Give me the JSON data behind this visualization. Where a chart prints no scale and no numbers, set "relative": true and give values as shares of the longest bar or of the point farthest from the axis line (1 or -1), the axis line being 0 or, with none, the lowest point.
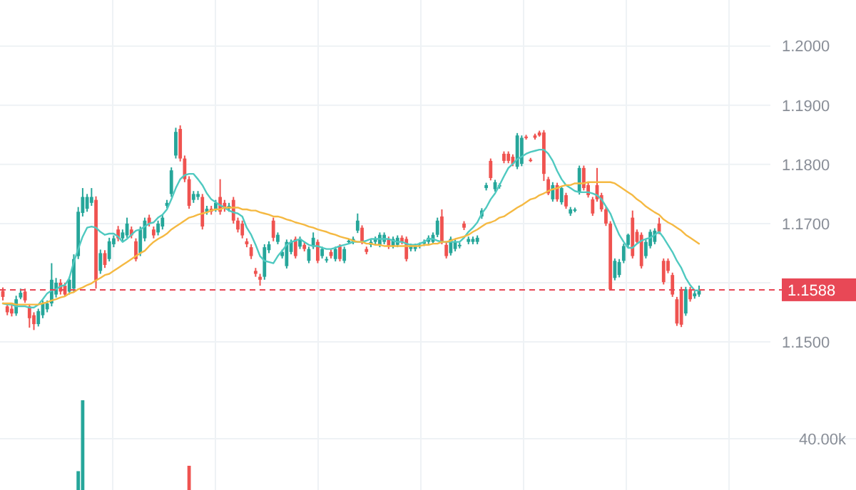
{
  "chart_data": [
    {
      "type": "candlestick",
      "categories": [
        null,
        null,
        null,
        null,
        null,
        null,
        null,
        null,
        null,
        null,
        null,
        null,
        null,
        null,
        null,
        null,
        null,
        null,
        null,
        null,
        null,
        null,
        null,
        null,
        null,
        null,
        null,
        null,
        null,
        null,
        null,
        null,
        null,
        null,
        null,
        null,
        null,
        null,
        null,
        null,
        null,
        null,
        null,
        null,
        null,
        null,
        null,
        null,
        null,
        null,
        null,
        null,
        null,
        null,
        null,
        null,
        null,
        null,
        null,
        null,
        null,
        null,
        null,
        null,
        null,
        null,
        null,
        null,
        null,
        null,
        null,
        null,
        null,
        null,
        null,
        null,
        null,
        null,
        null,
        null,
        null,
        null,
        null,
        null,
        null,
        null,
        null,
        null,
        null,
        null,
        null,
        null,
        null,
        null,
        null,
        null,
        null,
        null,
        null,
        null,
        null,
        null,
        null,
        null,
        null,
        null,
        null,
        null,
        null,
        null,
        null,
        null,
        null,
        null,
        null,
        null,
        null,
        null,
        null,
        null,
        null,
        null,
        null,
        null,
        null,
        null,
        null,
        null,
        null,
        null,
        null,
        null,
        null,
        null,
        null,
        null,
        null,
        null,
        null,
        null,
        null,
        null,
        null,
        null,
        null,
        null,
        null,
        null,
        null,
        null,
        null,
        null,
        null,
        null,
        null,
        null,
        null,
        null
      ],
      "ohlc": [
        [
          1.1586,
          1.1592,
          1.157,
          1.1576
        ],
        [
          1.156,
          1.1565,
          1.1545,
          1.155
        ],
        [
          1.1556,
          1.1562,
          1.1543,
          1.1548
        ],
        [
          1.1548,
          1.1578,
          1.1544,
          1.1572
        ],
        [
          1.1575,
          1.159,
          1.1572,
          1.1583
        ],
        [
          1.1585,
          1.159,
          1.1566,
          1.157
        ],
        [
          1.156,
          1.1564,
          1.1524,
          1.154
        ],
        [
          1.1545,
          1.155,
          1.152,
          1.153
        ],
        [
          1.153,
          1.1556,
          1.1526,
          1.1552
        ],
        [
          1.1545,
          1.157,
          1.154,
          1.1565
        ],
        [
          1.1555,
          1.157,
          1.155,
          1.1565
        ],
        [
          1.1565,
          1.1633,
          1.156,
          1.1605
        ],
        [
          1.158,
          1.1608,
          1.1575,
          1.16
        ],
        [
          1.16,
          1.1606,
          1.158,
          1.1585
        ],
        [
          1.1595,
          1.16,
          1.1576,
          1.158
        ],
        [
          1.1585,
          1.161,
          1.158,
          1.1605
        ],
        [
          1.159,
          1.1648,
          1.1585,
          1.164
        ],
        [
          1.1645,
          1.1728,
          1.164,
          1.172
        ],
        [
          1.1718,
          1.176,
          1.1712,
          1.1745
        ],
        [
          1.1725,
          1.175,
          1.172,
          1.1745
        ],
        [
          1.1735,
          1.176,
          1.173,
          1.1745
        ],
        [
          1.174,
          1.1746,
          1.159,
          1.1604
        ],
        [
          1.162,
          1.1656,
          1.1615,
          1.165
        ],
        [
          1.165,
          1.1655,
          1.1625,
          1.163
        ],
        [
          1.164,
          1.1676,
          1.1636,
          1.167
        ],
        [
          1.1665,
          1.168,
          1.166,
          1.1675
        ],
        [
          1.169,
          1.1696,
          1.167,
          1.1675
        ],
        [
          1.1675,
          1.169,
          1.167,
          1.1685
        ],
        [
          1.168,
          1.171,
          1.1676,
          1.17
        ],
        [
          1.169,
          1.1695,
          1.1675,
          1.168
        ],
        [
          1.167,
          1.1675,
          1.1636,
          1.164
        ],
        [
          1.165,
          1.1695,
          1.1645,
          1.169
        ],
        [
          1.1675,
          1.171,
          1.167,
          1.1705
        ],
        [
          1.171,
          1.1715,
          1.1695,
          1.17
        ],
        [
          1.169,
          1.1695,
          1.1675,
          1.168
        ],
        [
          1.1685,
          1.1705,
          1.168,
          1.17
        ],
        [
          1.1695,
          1.1715,
          1.169,
          1.171
        ],
        [
          1.173,
          1.174,
          1.1726,
          1.1735
        ],
        [
          1.175,
          1.1795,
          1.1745,
          1.179
        ],
        [
          1.1815,
          1.1862,
          1.181,
          1.1855
        ],
        [
          1.186,
          1.1866,
          1.1805,
          1.181
        ],
        [
          1.181,
          1.1815,
          1.177,
          1.1775
        ],
        [
          1.1775,
          1.178,
          1.1725,
          1.173
        ],
        [
          1.174,
          1.1755,
          1.1735,
          1.175
        ],
        [
          1.1745,
          1.1755,
          1.174,
          1.175
        ],
        [
          1.1745,
          1.175,
          1.169,
          1.1695
        ],
        [
          1.172,
          1.173,
          1.1715,
          1.1725
        ],
        [
          1.1725,
          1.173,
          1.1715,
          1.172
        ],
        [
          1.1725,
          1.174,
          1.172,
          1.1735
        ],
        [
          1.1745,
          1.1775,
          1.1715,
          1.172
        ],
        [
          1.1735,
          1.174,
          1.172,
          1.1725
        ],
        [
          1.1725,
          1.1735,
          1.172,
          1.173
        ],
        [
          1.174,
          1.1745,
          1.17,
          1.1705
        ],
        [
          1.1705,
          1.171,
          1.1685,
          1.169
        ],
        [
          1.17,
          1.1705,
          1.1675,
          1.168
        ],
        [
          1.167,
          1.1675,
          1.166,
          1.1665
        ],
        [
          1.166,
          1.1665,
          1.164,
          1.1645
        ],
        [
          1.162,
          1.1625,
          1.161,
          1.1615
        ],
        [
          1.161,
          1.1615,
          1.1595,
          1.1605
        ],
        [
          1.161,
          1.1665,
          1.1605,
          1.166
        ],
        [
          1.1655,
          1.167,
          1.165,
          1.1665
        ],
        [
          1.1705,
          1.171,
          1.167,
          1.1676
        ],
        [
          1.1669,
          1.1685,
          1.1665,
          1.1681
        ],
        [
          1.1645,
          1.1656,
          1.1641,
          1.1652
        ],
        [
          1.1628,
          1.1673,
          1.1624,
          1.1669
        ],
        [
          1.1652,
          1.1673,
          1.1648,
          1.1669
        ],
        [
          1.1674,
          1.1678,
          1.1641,
          1.1645
        ],
        [
          1.1661,
          1.1678,
          1.1657,
          1.1674
        ],
        [
          1.1664,
          1.1668,
          1.1653,
          1.1657
        ],
        [
          1.1637,
          1.1661,
          1.1633,
          1.1657
        ],
        [
          1.1661,
          1.1685,
          1.1657,
          1.1676
        ],
        [
          1.1669,
          1.1673,
          1.1633,
          1.1637
        ],
        [
          1.1645,
          1.1661,
          1.1641,
          1.1657
        ],
        [
          1.1638,
          1.1644,
          1.1634,
          1.164
        ],
        [
          1.1652,
          1.1656,
          1.1641,
          1.1645
        ],
        [
          1.164,
          1.1661,
          1.1636,
          1.1657
        ],
        [
          1.1661,
          1.1665,
          1.1636,
          1.164
        ],
        [
          1.1637,
          1.1661,
          1.1633,
          1.1657
        ],
        [
          1.1669,
          1.1674,
          1.1666,
          1.1671
        ],
        [
          1.1669,
          1.1678,
          1.1665,
          1.1674
        ],
        [
          1.1688,
          1.1717,
          1.1684,
          1.1705
        ],
        [
          1.1693,
          1.1697,
          1.1665,
          1.1669
        ],
        [
          1.1657,
          1.1661,
          1.1648,
          1.1652
        ],
        [
          1.1664,
          1.1673,
          1.166,
          1.1669
        ],
        [
          1.1669,
          1.1678,
          1.1665,
          1.1674
        ],
        [
          1.1664,
          1.1685,
          1.166,
          1.1681
        ],
        [
          1.1669,
          1.1685,
          1.1665,
          1.1681
        ],
        [
          1.1674,
          1.1678,
          1.1657,
          1.1661
        ],
        [
          1.1662,
          1.1678,
          1.1658,
          1.1674
        ],
        [
          1.1664,
          1.168,
          1.166,
          1.1676
        ],
        [
          1.1676,
          1.168,
          1.1665,
          1.1669
        ],
        [
          1.1674,
          1.1678,
          1.1636,
          1.164
        ],
        [
          1.1657,
          1.1666,
          1.1653,
          1.1662
        ],
        [
          1.1657,
          1.1666,
          1.1653,
          1.1662
        ],
        [
          1.1662,
          1.1668,
          1.1658,
          1.1664
        ],
        [
          1.1666,
          1.1673,
          1.1662,
          1.1669
        ],
        [
          1.1669,
          1.168,
          1.1665,
          1.1676
        ],
        [
          1.1669,
          1.1685,
          1.1665,
          1.1681
        ],
        [
          1.1681,
          1.171,
          1.1677,
          1.1705
        ],
        [
          1.1712,
          1.1724,
          1.1665,
          1.1669
        ],
        [
          1.1664,
          1.1668,
          1.1641,
          1.1645
        ],
        [
          1.165,
          1.1678,
          1.1646,
          1.1674
        ],
        [
          1.1657,
          1.1673,
          1.1653,
          1.1669
        ],
        [
          1.1662,
          1.1668,
          1.1658,
          1.1664
        ],
        [
          1.17,
          1.1704,
          1.1689,
          1.1693
        ],
        [
          1.1669,
          1.1678,
          1.1665,
          1.1674
        ],
        [
          1.1669,
          1.1678,
          1.1665,
          1.1674
        ],
        [
          1.1669,
          1.168,
          1.1665,
          1.1676
        ],
        [
          1.1712,
          1.1726,
          1.1708,
          1.1722
        ],
        [
          1.176,
          1.1769,
          1.1756,
          1.1765
        ],
        [
          1.1806,
          1.181,
          1.1773,
          1.1777
        ],
        [
          1.1758,
          1.1774,
          1.1754,
          1.177
        ],
        [
          1.1763,
          1.1768,
          1.1759,
          1.1765
        ],
        [
          1.1818,
          1.1822,
          1.1802,
          1.1806
        ],
        [
          1.1818,
          1.1822,
          1.1802,
          1.1806
        ],
        [
          1.1813,
          1.1817,
          1.1797,
          1.1801
        ],
        [
          1.1796,
          1.1853,
          1.1792,
          1.1849
        ],
        [
          1.1801,
          1.1849,
          1.1797,
          1.1845
        ],
        [
          1.1847,
          1.185,
          1.1842,
          1.1845
        ],
        [
          1.1808,
          1.1811,
          1.1804,
          1.1806
        ],
        [
          1.1849,
          1.1852,
          1.1842,
          1.1845
        ],
        [
          1.1854,
          1.1857,
          1.1847,
          1.1849
        ],
        [
          1.1854,
          1.1858,
          1.1772,
          1.1784
        ],
        [
          1.1775,
          1.1779,
          1.1748,
          1.1751
        ],
        [
          1.1741,
          1.177,
          1.1737,
          1.1765
        ],
        [
          1.1765,
          1.1769,
          1.1737,
          1.1741
        ],
        [
          1.1736,
          1.1763,
          1.1732,
          1.176
        ],
        [
          1.1748,
          1.1752,
          1.1725,
          1.1729
        ],
        [
          1.1717,
          1.1728,
          1.1713,
          1.1724
        ],
        [
          1.1722,
          1.1727,
          1.1719,
          1.1724
        ],
        [
          1.1753,
          1.1798,
          1.1749,
          1.1794
        ],
        [
          1.1794,
          1.1798,
          1.1756,
          1.176
        ],
        [
          1.1765,
          1.1769,
          1.1744,
          1.1748
        ],
        [
          1.1741,
          1.1745,
          1.1713,
          1.1717
        ],
        [
          1.1765,
          1.1794,
          1.1737,
          1.1741
        ],
        [
          1.1748,
          1.1752,
          1.172,
          1.1724
        ],
        [
          1.1724,
          1.1728,
          1.1696,
          1.17
        ],
        [
          1.17,
          1.1704,
          1.1587,
          1.1589
        ],
        [
          1.1608,
          1.1641,
          1.1604,
          1.1637
        ],
        [
          1.1613,
          1.164,
          1.1609,
          1.1635
        ],
        [
          1.1637,
          1.1666,
          1.1633,
          1.1662
        ],
        [
          1.1664,
          1.1683,
          1.166,
          1.1681
        ],
        [
          1.171,
          1.1722,
          1.1641,
          1.1645
        ],
        [
          1.1686,
          1.169,
          1.1665,
          1.1669
        ],
        [
          1.1681,
          1.1685,
          1.1624,
          1.1628
        ],
        [
          1.1645,
          1.1673,
          1.1641,
          1.1669
        ],
        [
          1.1662,
          1.169,
          1.1658,
          1.1686
        ],
        [
          1.1669,
          1.1692,
          1.1665,
          1.1688
        ],
        [
          1.17,
          1.171,
          1.1682,
          1.1686
        ],
        [
          1.1637,
          1.1641,
          1.1597,
          1.1601
        ],
        [
          1.1637,
          1.1641,
          1.1616,
          1.162
        ],
        [
          1.1613,
          1.1617,
          1.1576,
          1.158
        ],
        [
          1.1572,
          1.1576,
          1.1527,
          1.1531
        ],
        [
          1.1589,
          1.1593,
          1.1525,
          1.1529
        ],
        [
          1.1548,
          1.1593,
          1.1544,
          1.1589
        ],
        [
          1.1589,
          1.1593,
          1.1568,
          1.1572
        ],
        [
          1.1577,
          1.1586,
          1.1573,
          1.1582
        ],
        [
          1.158,
          1.1595,
          1.1576,
          1.1588
        ]
      ],
      "colors": [
        "#ef5350",
        "#ef5350",
        "#ef5350",
        "#26a69a",
        "#26a69a",
        "#ef5350",
        "#ef5350",
        "#ef5350",
        "#26a69a",
        "#26a69a",
        "#26a69a",
        "#26a69a",
        "#26a69a",
        "#ef5350",
        "#ef5350",
        "#26a69a",
        "#26a69a",
        "#26a69a",
        "#26a69a",
        "#26a69a",
        "#26a69a",
        "#ef5350",
        "#26a69a",
        "#ef5350",
        "#26a69a",
        "#26a69a",
        "#ef5350",
        "#26a69a",
        "#26a69a",
        "#ef5350",
        "#ef5350",
        "#26a69a",
        "#26a69a",
        "#ef5350",
        "#ef5350",
        "#26a69a",
        "#26a69a",
        "#26a69a",
        "#26a69a",
        "#26a69a",
        "#ef5350",
        "#ef5350",
        "#ef5350",
        "#26a69a",
        "#26a69a",
        "#ef5350",
        "#26a69a",
        "#ef5350",
        "#26a69a",
        "#ef5350",
        "#ef5350",
        "#26a69a",
        "#ef5350",
        "#ef5350",
        "#ef5350",
        "#ef5350",
        "#ef5350",
        "#ef5350",
        "#ef5350",
        "#26a69a",
        "#26a69a",
        "#ef5350",
        "#26a69a",
        "#26a69a",
        "#26a69a",
        "#26a69a",
        "#ef5350",
        "#26a69a",
        "#ef5350",
        "#26a69a",
        "#26a69a",
        "#ef5350",
        "#26a69a",
        "#26a69a",
        "#ef5350",
        "#26a69a",
        "#ef5350",
        "#26a69a",
        "#26a69a",
        "#26a69a",
        "#26a69a",
        "#ef5350",
        "#ef5350",
        "#26a69a",
        "#26a69a",
        "#26a69a",
        "#26a69a",
        "#ef5350",
        "#26a69a",
        "#26a69a",
        "#ef5350",
        "#ef5350",
        "#26a69a",
        "#26a69a",
        "#26a69a",
        "#26a69a",
        "#26a69a",
        "#26a69a",
        "#26a69a",
        "#ef5350",
        "#ef5350",
        "#26a69a",
        "#26a69a",
        "#26a69a",
        "#ef5350",
        "#26a69a",
        "#26a69a",
        "#26a69a",
        "#26a69a",
        "#26a69a",
        "#ef5350",
        "#26a69a",
        "#26a69a",
        "#ef5350",
        "#ef5350",
        "#ef5350",
        "#26a69a",
        "#26a69a",
        "#ef5350",
        "#ef5350",
        "#ef5350",
        "#ef5350",
        "#ef5350",
        "#ef5350",
        "#26a69a",
        "#ef5350",
        "#26a69a",
        "#ef5350",
        "#26a69a",
        "#26a69a",
        "#26a69a",
        "#ef5350",
        "#ef5350",
        "#ef5350",
        "#ef5350",
        "#ef5350",
        "#ef5350",
        "#ef5350",
        "#26a69a",
        "#26a69a",
        "#26a69a",
        "#26a69a",
        "#ef5350",
        "#ef5350",
        "#ef5350",
        "#26a69a",
        "#26a69a",
        "#26a69a",
        "#ef5350",
        "#ef5350",
        "#ef5350",
        "#ef5350",
        "#ef5350",
        "#ef5350",
        "#26a69a",
        "#ef5350",
        "#26a69a",
        "#26a69a"
      ],
      "series": [
        {
          "type": "line",
          "color": "#4fc9c0",
          "values": [
            1.1565,
            1.1563,
            1.1563,
            1.156,
            1.156,
            1.156,
            1.1558,
            1.1558,
            1.1563,
            1.1572,
            1.1582,
            1.1587,
            1.1589,
            1.1594,
            1.1596,
            1.1608,
            1.1635,
            1.1657,
            1.1678,
            1.1693,
            1.1695,
            1.1693,
            1.1686,
            1.1681,
            1.1683,
            1.1683,
            1.1678,
            1.1669,
            1.1674,
            1.1681,
            1.1688,
            1.169,
            1.1695,
            1.17,
            1.1702,
            1.171,
            1.1715,
            1.1724,
            1.1741,
            1.176,
            1.1775,
            1.1782,
            1.1784,
            1.1784,
            1.1775,
            1.1765,
            1.1751,
            1.1741,
            1.1736,
            1.1731,
            1.1727,
            1.1722,
            1.1719,
            1.1717,
            1.1712,
            1.1693,
            1.1681,
            1.1664,
            1.1645,
            1.1637,
            1.1635,
            1.1633,
            1.1645,
            1.1654,
            1.1664,
            1.1669,
            1.1671,
            1.1674,
            1.1669,
            1.1664,
            1.1662,
            1.1662,
            1.1659,
            1.1657,
            1.1657,
            1.1659,
            1.1662,
            1.1664,
            1.1666,
            1.1669,
            1.1669,
            1.1669,
            1.1671,
            1.1674,
            1.1674,
            1.1674,
            1.1674,
            1.1674,
            1.1671,
            1.1669,
            1.1669,
            1.1666,
            1.1664,
            1.1664,
            1.1666,
            1.1669,
            1.1674,
            1.1674,
            1.1671,
            1.1669,
            1.1669,
            1.1669,
            1.1669,
            1.1669,
            1.1676,
            1.1686,
            1.1693,
            1.1702,
            1.1717,
            1.1727,
            1.1741,
            1.1751,
            1.1765,
            1.178,
            1.1794,
            1.1801,
            1.1809,
            1.1813,
            1.1818,
            1.1821,
            1.1823,
            1.1825,
            1.1825,
            1.1818,
            1.1806,
            1.1789,
            1.1775,
            1.1765,
            1.176,
            1.1755,
            1.1753,
            1.1753,
            1.1753,
            1.1751,
            1.1748,
            1.1741,
            1.1729,
            1.1717,
            1.1698,
            1.1681,
            1.1669,
            1.1659,
            1.1659,
            1.1666,
            1.1671,
            1.1674,
            1.1676,
            1.1681,
            1.1686,
            1.1676,
            1.1664,
            1.1652,
            1.1637,
            1.1625,
            1.1608,
            1.1596,
            1.1587,
            1.1587
          ]
        },
        {
          "type": "line",
          "color": "#f5b942",
          "values": [
            1.1565,
            1.1565,
            1.1565,
            1.1563,
            1.1563,
            1.1563,
            1.1563,
            1.1563,
            1.1563,
            1.1565,
            1.1567,
            1.157,
            1.1572,
            1.1575,
            1.1577,
            1.1582,
            1.1584,
            1.1589,
            1.1592,
            1.1596,
            1.1599,
            1.1604,
            1.1608,
            1.1613,
            1.1615,
            1.162,
            1.1625,
            1.163,
            1.1635,
            1.164,
            1.1645,
            1.165,
            1.1654,
            1.1662,
            1.1669,
            1.1674,
            1.1678,
            1.1683,
            1.169,
            1.1695,
            1.17,
            1.1705,
            1.171,
            1.1712,
            1.1715,
            1.1717,
            1.1719,
            1.1722,
            1.1724,
            1.1724,
            1.1727,
            1.1727,
            1.1727,
            1.1727,
            1.1724,
            1.1724,
            1.1722,
            1.1722,
            1.1719,
            1.1717,
            1.1715,
            1.1712,
            1.1712,
            1.171,
            1.1707,
            1.1705,
            1.1702,
            1.17,
            1.1698,
            1.1695,
            1.1693,
            1.169,
            1.1688,
            1.1686,
            1.1683,
            1.1681,
            1.1678,
            1.1676,
            1.1674,
            1.1671,
            1.1669,
            1.1669,
            1.1666,
            1.1666,
            1.1664,
            1.1664,
            1.1662,
            1.1662,
            1.1662,
            1.1662,
            1.1662,
            1.1662,
            1.1662,
            1.1662,
            1.1662,
            1.1664,
            1.1664,
            1.1666,
            1.1666,
            1.1669,
            1.1669,
            1.1671,
            1.1674,
            1.1676,
            1.1678,
            1.1681,
            1.1686,
            1.169,
            1.1695,
            1.17,
            1.1702,
            1.1705,
            1.171,
            1.1712,
            1.1717,
            1.1722,
            1.1727,
            1.1731,
            1.1736,
            1.1741,
            1.1743,
            1.1748,
            1.1751,
            1.1755,
            1.1758,
            1.176,
            1.1763,
            1.1765,
            1.1765,
            1.1768,
            1.1768,
            1.1768,
            1.177,
            1.177,
            1.177,
            1.177,
            1.177,
            1.177,
            1.1768,
            1.1763,
            1.1758,
            1.1753,
            1.1748,
            1.1741,
            1.1736,
            1.1729,
            1.1724,
            1.1719,
            1.1715,
            1.1707,
            1.1702,
            1.1698,
            1.1693,
            1.1688,
            1.1681,
            1.1676,
            1.1671,
            1.1666
          ]
        }
      ],
      "ylim": [
        1.1447,
        1.2078
      ],
      "yticks": [
        {
          "value": 1.15,
          "label": "1.1500"
        },
        {
          "value": 1.16,
          "label": null
        },
        {
          "value": 1.17,
          "label": "1.1700"
        },
        {
          "value": 1.18,
          "label": "1.1800"
        },
        {
          "value": 1.19,
          "label": "1.1900"
        },
        {
          "value": 1.2,
          "label": "1.2000"
        }
      ],
      "grid": true,
      "tick_labels": "y",
      "ref_lines": [
        {
          "axis": "y",
          "value": 1.1588,
          "label": "1.1588",
          "color": "#e84856",
          "line_style": "dashed"
        }
      ]
    },
    {
      "type": "bar",
      "relative": true,
      "categories": [
        null,
        null,
        null,
        null,
        null,
        null,
        null,
        null,
        null,
        null,
        null,
        null,
        null,
        null,
        null,
        null,
        null,
        null,
        null,
        null,
        null,
        null,
        null,
        null,
        null,
        null,
        null,
        null,
        null,
        null,
        null,
        null,
        null,
        null,
        null,
        null,
        null,
        null,
        null,
        null,
        null,
        null,
        null,
        null,
        null,
        null,
        null,
        null,
        null,
        null,
        null,
        null,
        null,
        null,
        null,
        null,
        null,
        null,
        null,
        null,
        null,
        null,
        null,
        null,
        null,
        null,
        null,
        null,
        null,
        null,
        null,
        null,
        null,
        null,
        null,
        null,
        null,
        null,
        null,
        null,
        null,
        null,
        null,
        null,
        null,
        null,
        null,
        null,
        null,
        null,
        null,
        null,
        null,
        null,
        null,
        null,
        null,
        null,
        null,
        null,
        null,
        null,
        null,
        null,
        null,
        null,
        null,
        null,
        null,
        null,
        null,
        null,
        null,
        null,
        null,
        null,
        null,
        null,
        null,
        null,
        null,
        null,
        null,
        null,
        null,
        null,
        null,
        null,
        null,
        null,
        null,
        null,
        null,
        null,
        null,
        null,
        null,
        null,
        null,
        null,
        null,
        null,
        null,
        null,
        null,
        null,
        null,
        null,
        null,
        null,
        null,
        null,
        null,
        null,
        null,
        null,
        null,
        null
      ],
      "values": [
        null,
        null,
        null,
        null,
        null,
        null,
        null,
        null,
        null,
        null,
        null,
        null,
        null,
        null,
        null,
        null,
        null,
        0.21,
        1,
        null,
        null,
        null,
        null,
        null,
        null,
        null,
        null,
        null,
        null,
        null,
        null,
        null,
        null,
        null,
        null,
        null,
        null,
        null,
        null,
        null,
        null,
        null,
        0.27,
        null,
        null,
        null,
        null,
        null,
        null,
        null,
        null,
        null,
        null,
        null,
        null,
        null,
        null,
        null,
        null,
        null,
        null,
        null,
        null,
        null,
        null,
        null,
        null,
        null,
        null,
        null,
        null,
        null,
        null,
        null,
        null,
        null,
        null,
        null,
        null,
        null,
        null,
        null,
        null,
        null,
        null,
        null,
        null,
        null,
        null,
        null,
        null,
        null,
        null,
        null,
        null,
        null,
        null,
        null,
        null,
        null,
        null,
        null,
        null,
        null,
        null,
        null,
        null,
        null,
        null,
        null,
        null,
        null,
        null,
        null,
        null,
        null,
        null,
        null,
        null,
        null,
        null,
        null,
        null,
        null,
        null,
        null,
        null,
        null,
        null,
        null,
        null,
        null,
        null,
        null,
        null,
        null,
        null,
        null,
        null,
        null,
        null,
        null,
        null,
        null,
        null,
        null,
        null,
        null,
        null,
        null,
        null,
        null,
        null,
        null,
        null,
        null,
        null,
        null
      ],
      "colors": [
        null,
        null,
        null,
        null,
        null,
        null,
        null,
        null,
        null,
        null,
        null,
        null,
        null,
        null,
        null,
        null,
        null,
        "#26a69a",
        "#26a69a",
        null,
        null,
        null,
        null,
        null,
        null,
        null,
        null,
        null,
        null,
        null,
        null,
        null,
        null,
        null,
        null,
        null,
        null,
        null,
        null,
        null,
        null,
        null,
        "#ef5350",
        null,
        null,
        null,
        null,
        null,
        null,
        null,
        null,
        null,
        null,
        null,
        null,
        null,
        null,
        null,
        null,
        null,
        null,
        null,
        null,
        null,
        null,
        null,
        null,
        null,
        null,
        null,
        null,
        null,
        null,
        null,
        null,
        null,
        null,
        null,
        null,
        null,
        null,
        null,
        null,
        null,
        null,
        null,
        null,
        null,
        null,
        null,
        null,
        null,
        null,
        null,
        null,
        null,
        null,
        null,
        null,
        null,
        null,
        null,
        null,
        null,
        null,
        null,
        null,
        null,
        null,
        null,
        null,
        null,
        null,
        null,
        null,
        null,
        null,
        null,
        null,
        null,
        null,
        null,
        null,
        null,
        null,
        null,
        null,
        null,
        null,
        null,
        null,
        null,
        null,
        null,
        null,
        null,
        null,
        null,
        null,
        null,
        null,
        null,
        null,
        null,
        null,
        null,
        null,
        null,
        null,
        null,
        null,
        null,
        null,
        null,
        null,
        null,
        null,
        null
      ],
      "annotations": [
        "40.00k"
      ]
    }
  ]
}
